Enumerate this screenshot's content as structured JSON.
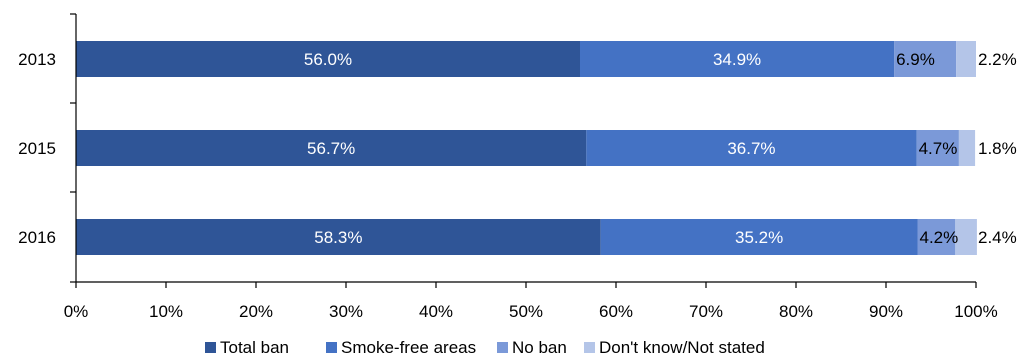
{
  "chart_data": {
    "type": "bar",
    "orientation": "horizontal",
    "stacked": true,
    "categories": [
      "2013",
      "2015",
      "2016"
    ],
    "series": [
      {
        "name": "Total ban",
        "values": [
          56.0,
          56.7,
          58.3
        ],
        "labels": [
          "56.0%",
          "56.7%",
          "58.3%"
        ],
        "color": "#2f5597",
        "label_color": "#ffffff"
      },
      {
        "name": "Smoke-free areas",
        "values": [
          34.9,
          36.7,
          35.2
        ],
        "labels": [
          "34.9%",
          "36.7%",
          "35.2%"
        ],
        "color": "#4472c4",
        "label_color": "#ffffff"
      },
      {
        "name": "No ban",
        "values": [
          6.9,
          4.7,
          4.2
        ],
        "labels": [
          "6.9%",
          "4.7%",
          "4.2%"
        ],
        "color": "#7b99d8",
        "label_color": "#000000"
      },
      {
        "name": "Don't know/Not stated",
        "values": [
          2.2,
          1.8,
          2.4
        ],
        "labels": [
          "2.2%",
          "1.8%",
          "2.4%"
        ],
        "color": "#b4c5e8",
        "label_color": "#000000"
      }
    ],
    "xlim": [
      0,
      100
    ],
    "x_ticks": [
      "0%",
      "10%",
      "20%",
      "30%",
      "40%",
      "50%",
      "60%",
      "70%",
      "80%",
      "90%",
      "100%"
    ],
    "grid": false,
    "legend_position": "bottom"
  }
}
